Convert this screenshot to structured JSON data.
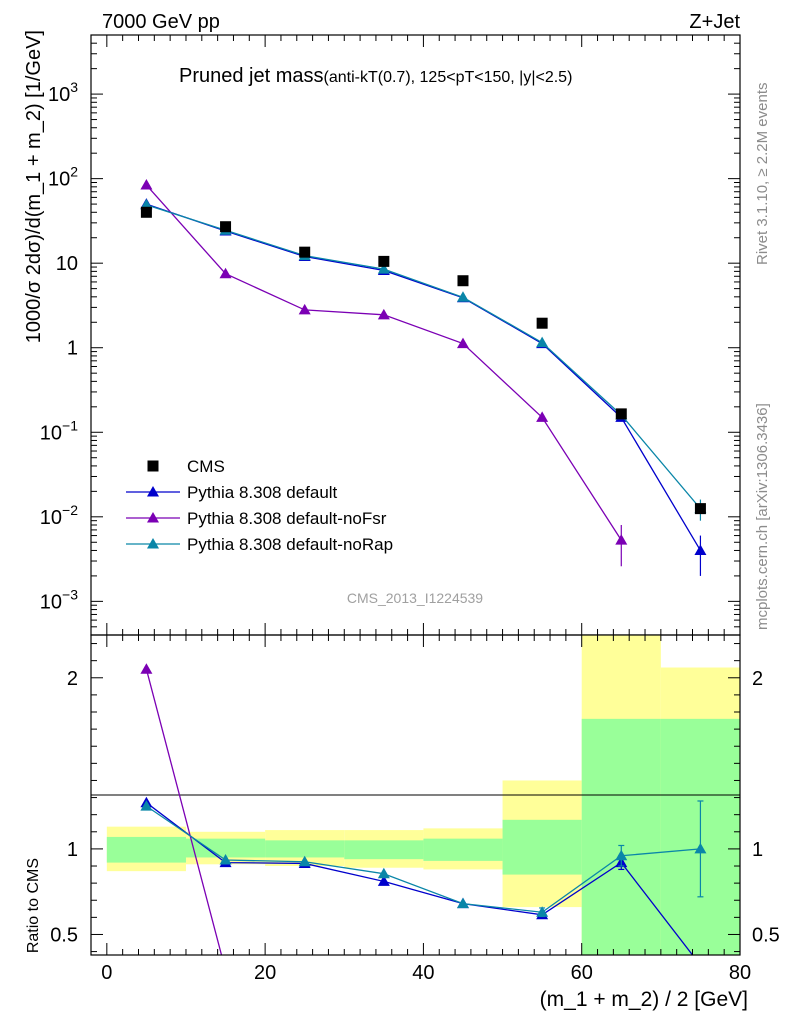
{
  "header": {
    "energy_label": "7000 GeV pp",
    "process_label": "Z+Jet"
  },
  "side_labels": {
    "rivet": "Rivet 3.1.10, ≥ 2.2M events",
    "mcplots": "mcplots.cern.ch [arXiv:1306.3436]"
  },
  "watermark": "CMS_2013_I1224539",
  "chart_data": [
    {
      "type": "scatter",
      "panel": "main",
      "title_main": "Pruned jet mass",
      "title_sub": "(anti-kT(0.7), 125<pT<150, |y|<2.5)",
      "ylabel": "1000/σ 2dσ)/d(m_1 + m_2) [1/GeV]",
      "yscale": "log",
      "xlim": [
        -2,
        80
      ],
      "ylim": [
        0.0004,
        5000
      ],
      "yticks": [
        {
          "label": "10",
          "exp": "−3",
          "value": 0.001
        },
        {
          "label": "10",
          "exp": "−2",
          "value": 0.01
        },
        {
          "label": "10",
          "exp": "−1",
          "value": 0.1
        },
        {
          "label": "1",
          "exp": "",
          "value": 1
        },
        {
          "label": "10",
          "exp": "",
          "value": 10
        },
        {
          "label": "10",
          "exp": "2",
          "value": 100
        },
        {
          "label": "10",
          "exp": "3",
          "value": 1000
        }
      ],
      "legend_position": "bottom-left",
      "x": [
        5,
        15,
        25,
        35,
        45,
        55,
        65,
        75
      ],
      "series": [
        {
          "name": "CMS",
          "style": "data",
          "color": "#000000",
          "values": [
            40,
            27,
            13.5,
            10.5,
            6.2,
            1.95,
            0.165,
            0.0125
          ]
        },
        {
          "name": "Pythia 8.308 default",
          "style": "mc",
          "color": "#0000cc",
          "values": [
            50,
            24,
            12,
            8.2,
            3.9,
            1.12,
            0.15,
            0.004
          ],
          "err": [
            0,
            0,
            0,
            0,
            0,
            0,
            0,
            0.002
          ]
        },
        {
          "name": "Pythia 8.308 default-noFsr",
          "style": "mc",
          "color": "#7b00b4",
          "values": [
            84,
            7.5,
            2.8,
            2.45,
            1.12,
            0.15,
            0.0053,
            null
          ],
          "err": [
            0,
            0,
            0,
            0,
            0,
            0,
            0.0027,
            0
          ]
        },
        {
          "name": "Pythia 8.308 default-noRap",
          "style": "mc",
          "color": "#0a86a8",
          "values": [
            49,
            24.5,
            12.3,
            8.5,
            3.95,
            1.15,
            0.16,
            0.0125
          ],
          "err": [
            0,
            0,
            0,
            0,
            0,
            0,
            0,
            0.0035
          ]
        }
      ]
    },
    {
      "type": "scatter",
      "panel": "ratio",
      "ylabel": "Ratio to CMS",
      "xlabel": "(m_1 + m_2) / 2 [GeV]",
      "xlim": [
        -2,
        80
      ],
      "ylim": [
        0.38,
        2.25
      ],
      "xticks": [
        0,
        20,
        40,
        60,
        80
      ],
      "yticks": [
        0.5,
        1,
        2
      ],
      "bands": {
        "x_edges": [
          0,
          10,
          20,
          30,
          40,
          50,
          60,
          70,
          80
        ],
        "inner": [
          [
            0.92,
            1.07
          ],
          [
            0.95,
            1.06
          ],
          [
            0.95,
            1.05
          ],
          [
            0.94,
            1.05
          ],
          [
            0.93,
            1.06
          ],
          [
            0.85,
            1.17
          ],
          [
            0.38,
            1.76
          ],
          [
            0.38,
            1.76
          ]
        ],
        "outer": [
          [
            0.87,
            1.13
          ],
          [
            0.91,
            1.1
          ],
          [
            0.9,
            1.11
          ],
          [
            0.89,
            1.11
          ],
          [
            0.88,
            1.12
          ],
          [
            0.66,
            1.4
          ],
          [
            0.38,
            2.25
          ],
          [
            0.43,
            2.06
          ]
        ],
        "inner_color": "#99ff99",
        "outer_color": "#ffff99"
      },
      "series": [
        {
          "name": "Pythia 8.308 default",
          "color": "#0000cc",
          "values": [
            1.27,
            0.92,
            0.915,
            0.81,
            0.68,
            0.615,
            0.92,
            0.32
          ],
          "err": [
            0,
            0,
            0,
            0,
            0,
            0,
            0.04,
            0
          ]
        },
        {
          "name": "Pythia 8.308 default-noFsr",
          "color": "#7b00b4",
          "values": [
            2.05,
            0.29,
            null,
            null,
            null,
            null,
            null,
            null
          ],
          "err": [
            0,
            0,
            0,
            0,
            0,
            0,
            0,
            0
          ]
        },
        {
          "name": "Pythia 8.308 default-noRap",
          "color": "#0a86a8",
          "values": [
            1.25,
            0.935,
            0.925,
            0.855,
            0.68,
            0.63,
            0.96,
            1.0
          ],
          "err": [
            0,
            0,
            0,
            0,
            0,
            0.025,
            0.06,
            0.28
          ]
        }
      ]
    }
  ]
}
